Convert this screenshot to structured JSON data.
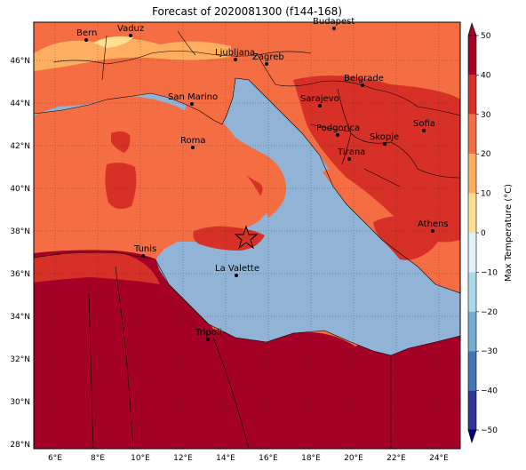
{
  "title": "Forecast of 2020081300 (f144-168)",
  "x_ticks": [
    "6°E",
    "8°E",
    "10°E",
    "12°E",
    "14°E",
    "16°E",
    "18°E",
    "20°E",
    "22°E",
    "24°E"
  ],
  "y_ticks": [
    "46°N",
    "44°N",
    "42°N",
    "40°N",
    "38°N",
    "36°N",
    "34°N",
    "32°N",
    "30°N",
    "28°N"
  ],
  "colorbar": {
    "label": "Max Temperature (°C)",
    "ticks": [
      "50",
      "40",
      "30",
      "20",
      "10",
      "0",
      "−10",
      "−20",
      "−30",
      "−40",
      "−50"
    ],
    "colors": [
      "#a50026",
      "#d73027",
      "#f46d43",
      "#fdae61",
      "#fee090",
      "#ffffbf",
      "#e0f3f8",
      "#abd9e9",
      "#74add1",
      "#4575b4",
      "#313695"
    ]
  },
  "cities": [
    {
      "name": "Bern"
    },
    {
      "name": "Vaduz"
    },
    {
      "name": "Budapest"
    },
    {
      "name": "Ljubljana"
    },
    {
      "name": "Zagreb"
    },
    {
      "name": "Belgrade"
    },
    {
      "name": "San Marino"
    },
    {
      "name": "Sarajevo"
    },
    {
      "name": "Sofia"
    },
    {
      "name": "Podgorica"
    },
    {
      "name": "Skopje"
    },
    {
      "name": "Roma"
    },
    {
      "name": "Tirana"
    },
    {
      "name": "Athens"
    },
    {
      "name": "Tunis"
    },
    {
      "name": "La Valette"
    },
    {
      "name": "Tripoli"
    }
  ],
  "marker": {
    "type": "star",
    "name": "star-marker"
  }
}
